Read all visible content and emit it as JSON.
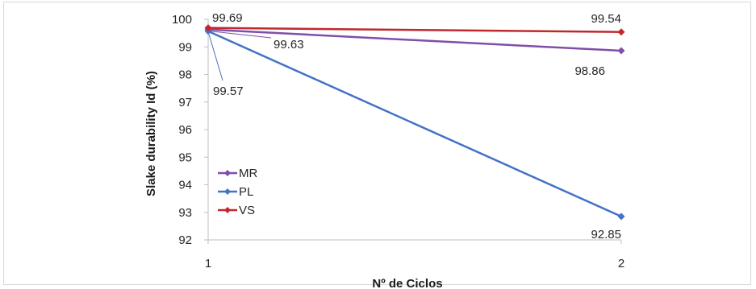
{
  "chart_data": {
    "type": "line",
    "title": "",
    "xlabel": "Nº de Ciclos",
    "ylabel": "Slake durability Id (%)",
    "x": [
      1,
      2
    ],
    "x_tick_labels": [
      "1",
      "2"
    ],
    "ylim": [
      92,
      100
    ],
    "y_ticks": [
      92,
      93,
      94,
      95,
      96,
      97,
      98,
      99,
      100
    ],
    "grid": false,
    "legend_position": "bottom-left",
    "series": [
      {
        "name": "MR",
        "color": "#7f4fa8",
        "values": [
          99.63,
          98.86
        ],
        "labels": [
          "99.63",
          "98.86"
        ]
      },
      {
        "name": "PL",
        "color": "#4472c4",
        "values": [
          99.57,
          92.85
        ],
        "labels": [
          "99.57",
          "92.85"
        ]
      },
      {
        "name": "VS",
        "color": "#c0282e",
        "values": [
          99.69,
          99.54
        ],
        "labels": [
          "99.69",
          "99.54"
        ]
      }
    ]
  }
}
